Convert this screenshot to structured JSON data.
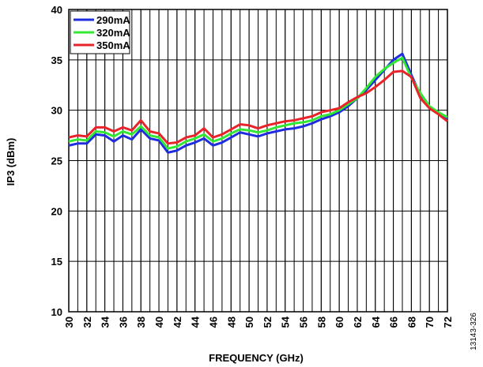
{
  "chart_data": {
    "type": "line",
    "xlabel": "FREQUENCY (GHz)",
    "ylabel": "IP3 (dBm)",
    "figure_id": "13143-326",
    "x": [
      30,
      31,
      32,
      33,
      34,
      35,
      36,
      37,
      38,
      39,
      40,
      41,
      42,
      43,
      44,
      45,
      46,
      47,
      48,
      49,
      50,
      51,
      52,
      53,
      54,
      55,
      56,
      57,
      58,
      59,
      60,
      61,
      62,
      63,
      64,
      65,
      66,
      67,
      68,
      69,
      70,
      71,
      72
    ],
    "series": [
      {
        "name": "290mA",
        "color": "#1f2de0",
        "values": [
          26.5,
          26.7,
          26.7,
          27.6,
          27.5,
          26.9,
          27.5,
          27.1,
          28.1,
          27.2,
          27.0,
          25.8,
          26.0,
          26.5,
          26.8,
          27.2,
          26.5,
          26.8,
          27.3,
          27.8,
          27.6,
          27.4,
          27.7,
          27.9,
          28.1,
          28.2,
          28.4,
          28.7,
          29.1,
          29.4,
          29.8,
          30.4,
          31.2,
          32.0,
          33.0,
          34.0,
          35.0,
          35.6,
          33.5,
          31.5,
          30.2,
          29.7,
          29.1
        ]
      },
      {
        "name": "320mA",
        "color": "#33e833",
        "values": [
          26.9,
          27.1,
          27.0,
          27.9,
          27.8,
          27.4,
          27.9,
          27.6,
          28.4,
          27.5,
          27.3,
          26.2,
          26.4,
          26.9,
          27.2,
          27.6,
          26.9,
          27.2,
          27.7,
          28.1,
          28.0,
          27.8,
          28.0,
          28.3,
          28.5,
          28.7,
          28.8,
          29.0,
          29.4,
          29.6,
          30.0,
          30.6,
          31.2,
          32.2,
          33.3,
          34.1,
          34.7,
          35.2,
          33.2,
          31.7,
          30.4,
          29.8,
          29.3
        ]
      },
      {
        "name": "350mA",
        "color": "#e8232a",
        "values": [
          27.3,
          27.5,
          27.4,
          28.3,
          28.3,
          27.9,
          28.3,
          28.0,
          29.0,
          27.9,
          27.7,
          26.7,
          26.8,
          27.3,
          27.5,
          28.2,
          27.3,
          27.6,
          28.1,
          28.6,
          28.5,
          28.2,
          28.5,
          28.7,
          28.9,
          29.0,
          29.2,
          29.4,
          29.8,
          30.0,
          30.2,
          30.8,
          31.3,
          31.7,
          32.3,
          33.0,
          33.8,
          33.9,
          33.3,
          31.2,
          30.2,
          29.6,
          28.9
        ]
      }
    ],
    "xlim": [
      30,
      72
    ],
    "xticks": [
      30,
      32,
      34,
      36,
      38,
      40,
      42,
      44,
      46,
      48,
      50,
      52,
      54,
      56,
      58,
      60,
      62,
      64,
      66,
      68,
      70,
      72
    ],
    "x_minor_step": 1,
    "ylim": [
      10,
      40
    ],
    "yticks": [
      10,
      15,
      20,
      25,
      30,
      35,
      40
    ],
    "grid": true,
    "legend": "upper left"
  }
}
